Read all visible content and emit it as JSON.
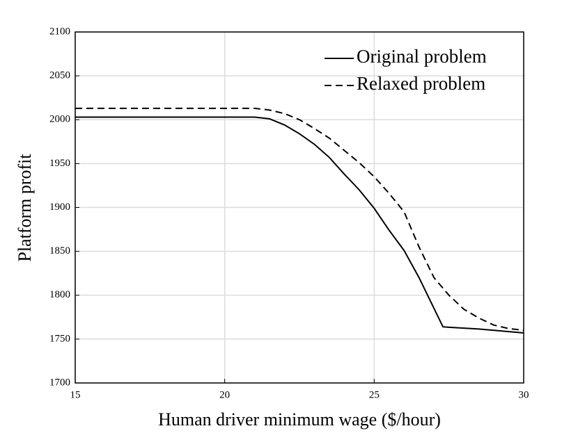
{
  "chart_data": {
    "type": "line",
    "xlabel": "Human driver minimum wage ($/hour)",
    "ylabel": "Platform profit",
    "x": [
      15,
      16,
      17,
      18,
      19,
      20,
      21,
      21.5,
      22,
      22.5,
      23,
      23.5,
      24,
      24.5,
      25,
      25.5,
      26,
      26.5,
      27,
      27.3,
      27.5,
      28,
      28.5,
      29,
      29.5,
      30
    ],
    "series": [
      {
        "name": "Original problem",
        "color": "#000000",
        "dash": "solid",
        "values": [
          2003,
          2003,
          2003,
          2003,
          2003,
          2003,
          2003,
          2001,
          1994,
          1984,
          1972,
          1957,
          1938,
          1920,
          1899,
          1874,
          1851,
          1820,
          1785,
          1764,
          1763.5,
          1762.5,
          1761.5,
          1760,
          1758.5,
          1757
        ]
      },
      {
        "name": "Relaxed problem",
        "color": "#000000",
        "dash": "dashed",
        "values": [
          2013,
          2013,
          2013,
          2013,
          2013,
          2013,
          2013,
          2011,
          2007,
          2000,
          1990,
          1979,
          1965,
          1951,
          1935,
          1916,
          1895,
          1855,
          1820,
          1808,
          1800,
          1784,
          1774,
          1766,
          1762,
          1760
        ]
      }
    ],
    "xlim": [
      15,
      30
    ],
    "xticks": [
      15,
      20,
      25,
      30
    ],
    "ylim": [
      1700,
      2100
    ],
    "yticks": [
      1700,
      1750,
      1800,
      1850,
      1900,
      1950,
      2000,
      2050,
      2100
    ],
    "grid": true,
    "legend": "upper right"
  }
}
